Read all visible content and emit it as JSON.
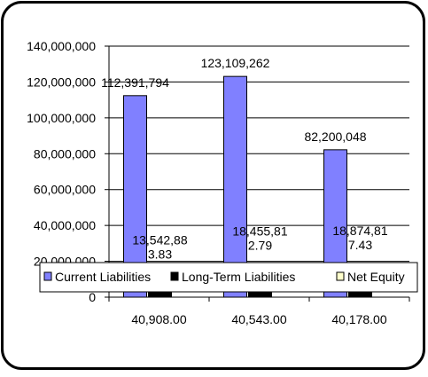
{
  "chart_data": {
    "type": "bar",
    "categories": [
      "40,908.00",
      "40,543.00",
      "40,178.00"
    ],
    "series": [
      {
        "name": "Current Liabilities",
        "values": [
          112391794,
          123109262,
          82200048
        ],
        "labels": [
          [
            "112,391,794"
          ],
          [
            "123,109,262"
          ],
          [
            "82,200,048"
          ]
        ],
        "color": "#8080ff"
      },
      {
        "name": "Long-Term Liabilities",
        "values": [
          13542883.83,
          18455812.79,
          18874817.43
        ],
        "labels": [
          [
            "13,542,88",
            "3.83"
          ],
          [
            "18,455,81",
            "2.79"
          ],
          [
            "18,874,81",
            "7.43"
          ]
        ],
        "color": "#000000"
      },
      {
        "name": "Net Equity",
        "values": [
          0,
          0,
          0
        ],
        "labels": [
          [],
          [],
          []
        ],
        "color": "#ffffcc"
      }
    ],
    "y_ticks": [
      "0",
      "20,000,000",
      "40,000,000",
      "60,000,000",
      "80,000,000",
      "100,000,000",
      "120,000,000",
      "140,000,000"
    ],
    "ylim": [
      0,
      140000000
    ],
    "legend_position": "bottom-overlay",
    "grid": true
  }
}
